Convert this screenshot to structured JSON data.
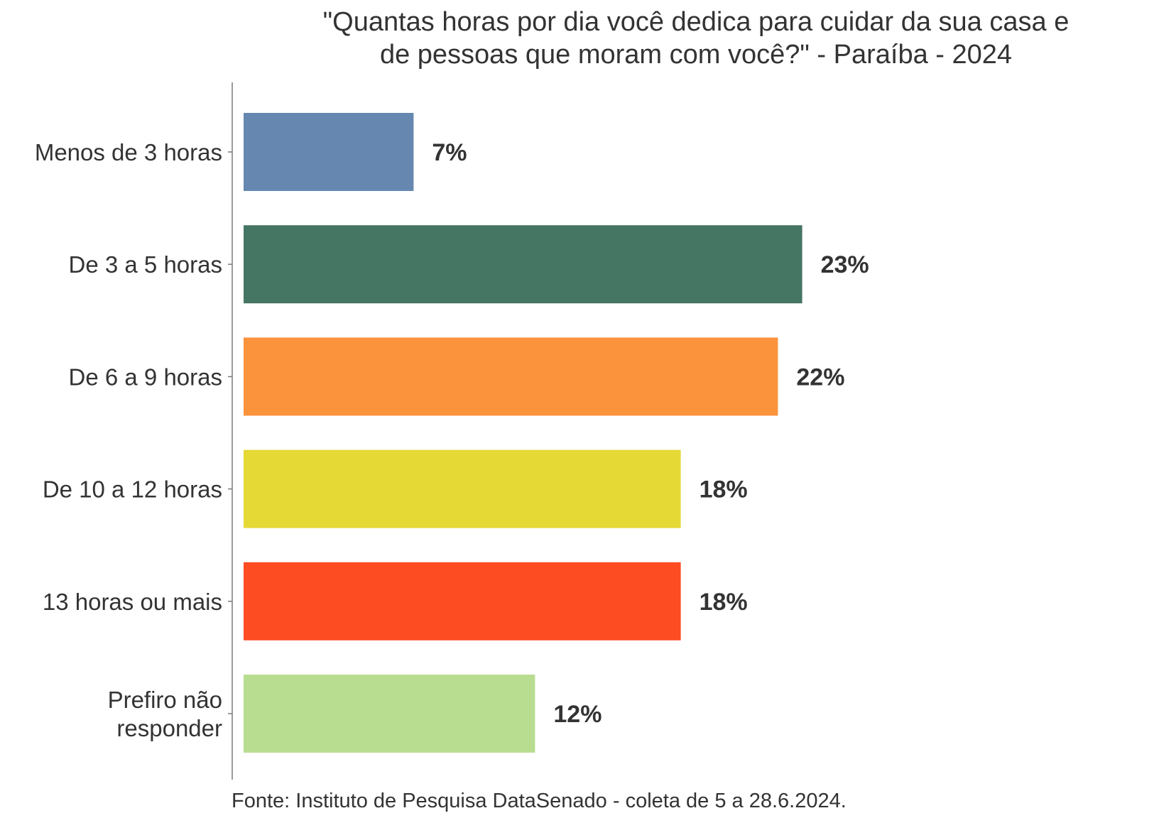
{
  "chart_data": {
    "type": "bar",
    "orientation": "horizontal",
    "title_lines": [
      "\"Quantas horas por dia você dedica para cuidar da sua casa e",
      "de pessoas que moram com você?\" - Paraíba - 2024"
    ],
    "categories": [
      [
        "Menos de 3 horas"
      ],
      [
        "De 3 a 5 horas"
      ],
      [
        "De 6 a 9 horas"
      ],
      [
        "De 10 a 12 horas"
      ],
      [
        "13 horas ou mais"
      ],
      [
        "Prefiro não",
        "responder"
      ]
    ],
    "values": [
      7,
      23,
      22,
      18,
      18,
      12
    ],
    "labels": [
      "7%",
      "23%",
      "22%",
      "18%",
      "18%",
      "12%"
    ],
    "colors": [
      "#6688b0",
      "#457563",
      "#fb923c",
      "#e5d935",
      "#fd4b22",
      "#b9dd90"
    ],
    "xlim": [
      0,
      25
    ],
    "xlabel": "",
    "ylabel": "",
    "grid": false,
    "legend": "none",
    "source": "Fonte: Instituto de Pesquisa DataSenado - coleta de 5 a 28.6.2024."
  }
}
